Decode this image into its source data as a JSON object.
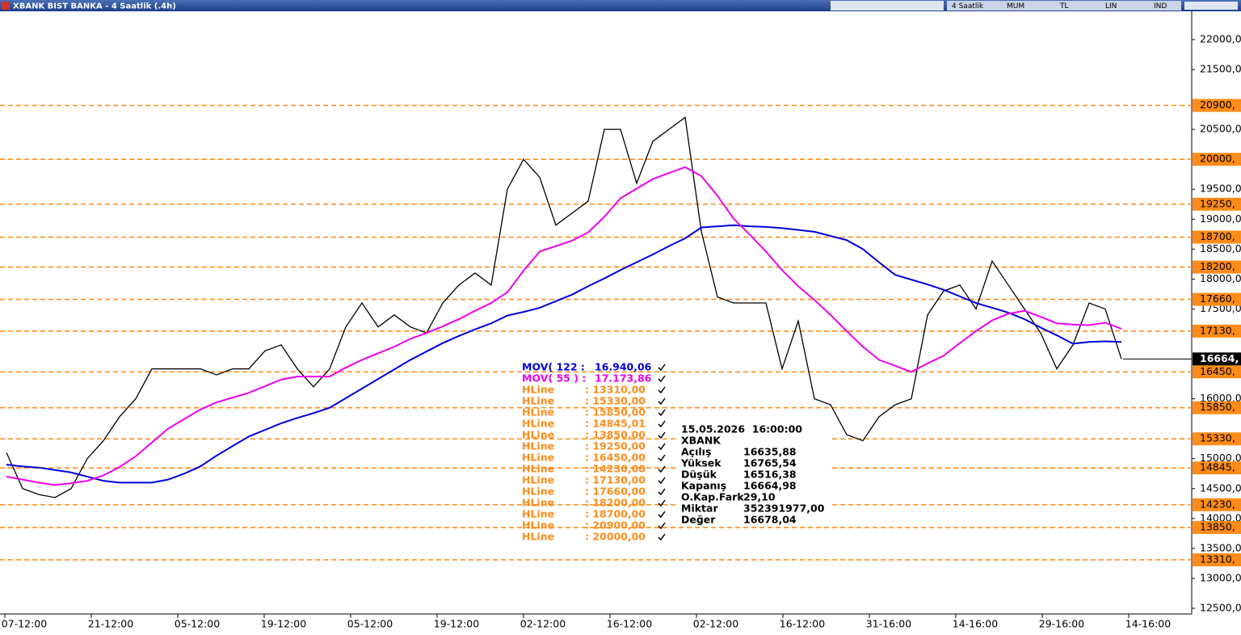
{
  "window": {
    "title": "XBANK BIST BANKA - 4 Saatlik (.4h)",
    "toolbar": [
      "4 Saatlik",
      "MUM",
      "TL",
      "LIN",
      "IND"
    ]
  },
  "chart_data": {
    "type": "line",
    "x_tick_labels": [
      "07-12:00",
      "21-12:00",
      "05-12:00",
      "19-12:00",
      "05-12:00",
      "19-12:00",
      "02-12:00",
      "16-12:00",
      "02-12:00",
      "16-12:00",
      "31-16:00",
      "14-16:00",
      "29-16:00",
      "14-16:00"
    ],
    "ylim": [
      12405,
      22472
    ],
    "yticks": [
      {
        "value": 12500,
        "label": "12500,0"
      },
      {
        "value": 13000,
        "label": "13000,0"
      },
      {
        "value": 13500,
        "label": "13500,0"
      },
      {
        "value": 14000,
        "label": "14000,0"
      },
      {
        "value": 14500,
        "label": "14500,0"
      },
      {
        "value": 15000,
        "label": "15000,0"
      },
      {
        "value": 16000,
        "label": "16000,0"
      },
      {
        "value": 17500,
        "label": "17500,0"
      },
      {
        "value": 18000,
        "label": "18000,0"
      },
      {
        "value": 18500,
        "label": "18500,0"
      },
      {
        "value": 19000,
        "label": "19000,0"
      },
      {
        "value": 19500,
        "label": "19500,0"
      },
      {
        "value": 20500,
        "label": "20500,0"
      },
      {
        "value": 21500,
        "label": "21500,0"
      },
      {
        "value": 22000,
        "label": "22000,0"
      }
    ],
    "series": [
      {
        "color": "#000000",
        "values": [
          15100,
          14500,
          14400,
          14350,
          14500,
          15000,
          15300,
          15700,
          16000,
          16500,
          16500,
          16500,
          16500,
          16400,
          16500,
          16500,
          16800,
          16900,
          16500,
          16200,
          16500,
          17200,
          17600,
          17200,
          17400,
          17200,
          17100,
          17600,
          17900,
          18100,
          17900,
          19500,
          20000,
          19700,
          18900,
          19100,
          19300,
          20500,
          20500,
          19600,
          20300,
          20500,
          20700,
          18800,
          17700,
          17600,
          17600,
          17600,
          16500,
          17300,
          16000,
          15900,
          15400,
          15300,
          15700,
          15900,
          16000,
          17400,
          17800,
          17900,
          17500,
          18300,
          17900,
          17500,
          17100,
          16500,
          16900,
          17600,
          17500,
          16665
        ]
      },
      {
        "name": "MOV( 122 :",
        "value_label": "16.940,06",
        "color": "#0000dd",
        "values": [
          14900,
          14870,
          14850,
          14810,
          14770,
          14700,
          14630,
          14600,
          14600,
          14600,
          14650,
          14750,
          14870,
          15050,
          15210,
          15370,
          15480,
          15590,
          15680,
          15760,
          15850,
          16010,
          16170,
          16330,
          16490,
          16650,
          16790,
          16930,
          17050,
          17160,
          17260,
          17390,
          17450,
          17520,
          17630,
          17740,
          17880,
          18010,
          18150,
          18280,
          18410,
          18550,
          18680,
          18860,
          18880,
          18900,
          18880,
          18870,
          18850,
          18820,
          18790,
          18720,
          18650,
          18500,
          18280,
          18070,
          17990,
          17910,
          17820,
          17710,
          17600,
          17520,
          17440,
          17330,
          17190,
          17060,
          16920,
          16950,
          16960,
          16950
        ]
      },
      {
        "name": "MOV( 55 ) :",
        "value_label": "17.173,86",
        "color": "#ee00ee",
        "values": [
          14700,
          14650,
          14600,
          14560,
          14590,
          14630,
          14720,
          14860,
          15040,
          15270,
          15500,
          15660,
          15820,
          15940,
          16020,
          16100,
          16210,
          16320,
          16370,
          16370,
          16370,
          16520,
          16650,
          16760,
          16870,
          17000,
          17100,
          17210,
          17330,
          17470,
          17600,
          17780,
          18140,
          18460,
          18550,
          18640,
          18780,
          19040,
          19350,
          19510,
          19670,
          19770,
          19870,
          19720,
          19390,
          19010,
          18740,
          18460,
          18150,
          17880,
          17650,
          17400,
          17130,
          16870,
          16650,
          16550,
          16450,
          16590,
          16720,
          16930,
          17130,
          17310,
          17420,
          17470,
          17370,
          17260,
          17240,
          17230,
          17270,
          17170
        ]
      }
    ],
    "hline_name": "HLine",
    "hline_color": "#ff8c1a",
    "hlines": [
      {
        "value": 13310,
        "label": "13310,",
        "legend": ": 13310,00"
      },
      {
        "value": 15330,
        "label": "15330,",
        "legend": ": 15330,00"
      },
      {
        "value": 15850,
        "label": "15850,",
        "legend": ": 15850,00"
      },
      {
        "value": 14845.01,
        "label": "14845,",
        "legend": ": 14845,01"
      },
      {
        "value": 13850,
        "label": "13850,",
        "legend": ": 13850,00"
      },
      {
        "value": 19250,
        "label": "19250,",
        "legend": ": 19250,00"
      },
      {
        "value": 16450,
        "label": "16450,",
        "legend": ": 16450,00"
      },
      {
        "value": 14230,
        "label": "14230,",
        "legend": ": 14230,00"
      },
      {
        "value": 17130,
        "label": "17130,",
        "legend": ": 17130,00"
      },
      {
        "value": 17660,
        "label": "17660,",
        "legend": ": 17660,00"
      },
      {
        "value": 18200,
        "label": "18200,",
        "legend": ": 18200,00"
      },
      {
        "value": 18700,
        "label": "18700,",
        "legend": ": 18700,00"
      },
      {
        "value": 20900,
        "label": "20900,",
        "legend": ": 20900,00"
      },
      {
        "value": 20000,
        "label": "20000,",
        "legend": ": 20000,00"
      }
    ],
    "last_price": {
      "value": 16664.98,
      "label": "16664,"
    }
  },
  "info": {
    "datetime": "15.05.2026  16:00:00",
    "symbol": "XBANK",
    "rows": [
      [
        "Açılış",
        "16635,88"
      ],
      [
        "Yüksek",
        "16765,54"
      ],
      [
        "Düşük",
        "16516,38"
      ],
      [
        "Kapanış",
        "16664,98"
      ],
      [
        "O.Kap.Fark",
        "29,10"
      ],
      [
        "Miktar",
        "352391977,00"
      ],
      [
        "Değer",
        "16678,04"
      ]
    ]
  }
}
